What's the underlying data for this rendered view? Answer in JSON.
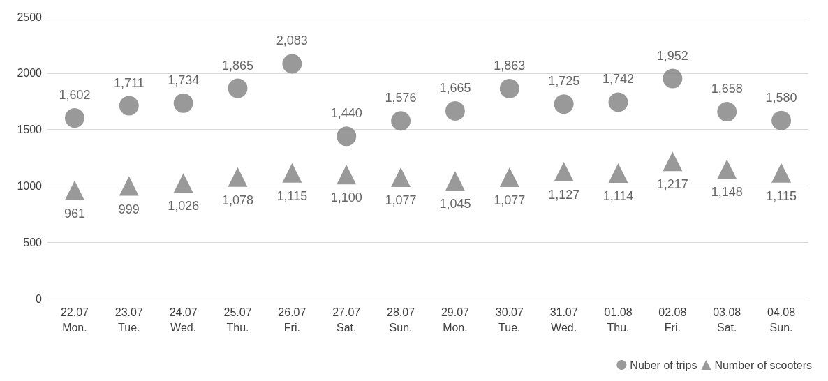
{
  "chart_data": {
    "type": "scatter",
    "categories": [
      "22.07\nMon.",
      "23.07\nTue.",
      "24.07\nWed.",
      "25.07\nThu.",
      "26.07\nFri.",
      "27.07\nSat.",
      "28.07\nSun.",
      "29.07\nMon.",
      "30.07\nTue.",
      "31.07\nWed.",
      "01.08\nThu.",
      "02.08\nFri.",
      "03.08\nSat.",
      "04.08\nSun."
    ],
    "series": [
      {
        "name": "Nuber of trips",
        "color": "#7f7f7f",
        "marker": "circle",
        "values": [
          1602,
          1711,
          1734,
          1865,
          2083,
          1440,
          1576,
          1665,
          1863,
          1725,
          1742,
          1952,
          1658,
          1580
        ],
        "value_labels": [
          "1,602",
          "1,711",
          "1,734",
          "1,865",
          "2,083",
          "1,440",
          "1,576",
          "1,665",
          "1,863",
          "1,725",
          "1,742",
          "1,952",
          "1,658",
          "1,580"
        ]
      },
      {
        "name": "Number of scooters",
        "color": "#7f7f7f",
        "marker": "triangle",
        "values": [
          961,
          999,
          1026,
          1078,
          1115,
          1100,
          1077,
          1045,
          1077,
          1127,
          1114,
          1217,
          1148,
          1115
        ],
        "value_labels": [
          "961",
          "999",
          "1,026",
          "1,078",
          "1,115",
          "1,100",
          "1,077",
          "1,045",
          "1,077",
          "1,127",
          "1,114",
          "1,217",
          "1,148",
          "1,115"
        ]
      }
    ],
    "ylim": [
      0,
      2500
    ],
    "yticks": [
      0,
      500,
      1000,
      1500,
      2000,
      2500
    ],
    "grid": "y",
    "legend": "bottom right"
  }
}
